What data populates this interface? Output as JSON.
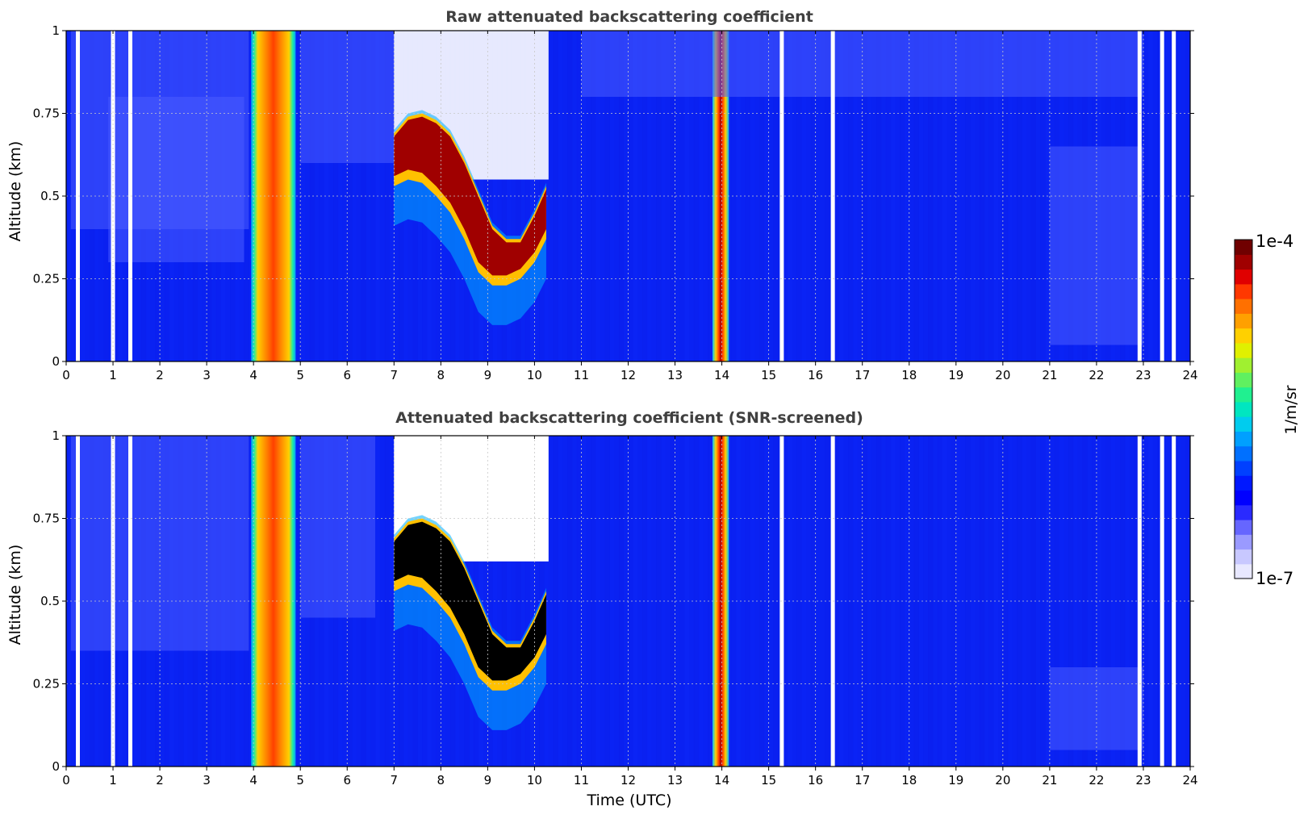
{
  "colorbar": {
    "max_label": "1e-4",
    "min_label": "1e-7",
    "unit_label": "1/m/sr",
    "colors": [
      "#e8e8ff",
      "#c8c8ff",
      "#9a9aff",
      "#6666ff",
      "#2a2aff",
      "#0000ff",
      "#0018ff",
      "#0040ff",
      "#0070ff",
      "#00a0ff",
      "#00ccee",
      "#00e6c0",
      "#20f090",
      "#60f060",
      "#a0f030",
      "#e0f000",
      "#ffd000",
      "#ffa000",
      "#ff7000",
      "#ff3800",
      "#e00000",
      "#a00000",
      "#700000"
    ]
  },
  "chart_data": [
    {
      "type": "heatmap",
      "title": "Raw attenuated backscattering coefficient",
      "xlabel": "",
      "ylabel": "Altitude (km)",
      "xlim": [
        0,
        24
      ],
      "ylim": [
        0,
        1
      ],
      "x_ticks": [
        "0",
        "1",
        "2",
        "3",
        "4",
        "5",
        "6",
        "7",
        "8",
        "9",
        "10",
        "11",
        "12",
        "13",
        "14",
        "15",
        "16",
        "17",
        "18",
        "19",
        "20",
        "21",
        "22",
        "23",
        "24"
      ],
      "y_ticks": [
        "0",
        "0.25",
        "0.5",
        "0.75",
        "1"
      ],
      "grid": true,
      "colorscale": "jet (log)",
      "value_range": [
        "1e-7",
        "1e-4"
      ],
      "background_color": "#0b24f5",
      "features": [
        {
          "kind": "precipitation",
          "x": [
            3.95,
            4.9
          ],
          "y": [
            0,
            1
          ],
          "level": "high"
        },
        {
          "kind": "precipitation",
          "x": [
            13.8,
            14.15
          ],
          "y": [
            0,
            1
          ],
          "level": "very high"
        },
        {
          "kind": "noise",
          "x": [
            7.0,
            10.3
          ],
          "y": [
            0.55,
            1
          ],
          "level": "missing"
        },
        {
          "kind": "noise",
          "x": [
            0.1,
            3.9
          ],
          "y": [
            0.4,
            1
          ],
          "level": "low"
        },
        {
          "kind": "noise",
          "x": [
            5.0,
            7.0
          ],
          "y": [
            0.6,
            1
          ],
          "level": "low"
        },
        {
          "kind": "noise",
          "x": [
            11.0,
            23.0
          ],
          "y": [
            0.8,
            1
          ],
          "level": "low"
        },
        {
          "kind": "aerosol",
          "x": [
            21.0,
            23.0
          ],
          "y": [
            0.05,
            0.65
          ],
          "level": "low"
        },
        {
          "kind": "aerosol",
          "x": [
            0.9,
            3.8
          ],
          "y": [
            0.3,
            0.8
          ],
          "level": "low"
        }
      ],
      "cloud_layer": {
        "x": [
          7.0,
          7.3,
          7.6,
          7.9,
          8.2,
          8.5,
          8.8,
          9.1,
          9.4,
          9.7,
          10.0,
          10.25
        ],
        "y_top": [
          0.68,
          0.73,
          0.74,
          0.72,
          0.68,
          0.6,
          0.5,
          0.4,
          0.36,
          0.36,
          0.44,
          0.52
        ],
        "y_bottom": [
          0.56,
          0.58,
          0.57,
          0.53,
          0.48,
          0.4,
          0.3,
          0.26,
          0.26,
          0.28,
          0.33,
          0.4
        ]
      },
      "missing_profiles": [
        0.25,
        1.0,
        1.37,
        15.28,
        16.37,
        22.92,
        23.4,
        23.65
      ]
    },
    {
      "type": "heatmap",
      "title": "Attenuated backscattering coefficient (SNR-screened)",
      "xlabel": "Time (UTC)",
      "ylabel": "Altitude (km)",
      "xlim": [
        0,
        24
      ],
      "ylim": [
        0,
        1
      ],
      "x_ticks": [
        "0",
        "1",
        "2",
        "3",
        "4",
        "5",
        "6",
        "7",
        "8",
        "9",
        "10",
        "11",
        "12",
        "13",
        "14",
        "15",
        "16",
        "17",
        "18",
        "19",
        "20",
        "21",
        "22",
        "23",
        "24"
      ],
      "y_ticks": [
        "0",
        "0.25",
        "0.5",
        "0.75",
        "1"
      ],
      "grid": true,
      "colorscale": "jet (log)",
      "value_range": [
        "1e-7",
        "1e-4"
      ],
      "background_color": "#0b24f5",
      "features": [
        {
          "kind": "precipitation",
          "x": [
            3.95,
            4.9
          ],
          "y": [
            0,
            1
          ],
          "level": "high"
        },
        {
          "kind": "precipitation",
          "x": [
            13.8,
            14.15
          ],
          "y": [
            0,
            1
          ],
          "level": "very high"
        },
        {
          "kind": "screened",
          "x": [
            7.0,
            10.3
          ],
          "y": [
            0.62,
            1
          ],
          "level": "missing"
        },
        {
          "kind": "aerosol",
          "x": [
            0.1,
            3.9
          ],
          "y": [
            0.35,
            1
          ],
          "level": "low"
        },
        {
          "kind": "aerosol",
          "x": [
            5.0,
            6.6
          ],
          "y": [
            0.45,
            1
          ],
          "level": "low"
        },
        {
          "kind": "aerosol",
          "x": [
            21.0,
            23.0
          ],
          "y": [
            0.05,
            0.3
          ],
          "level": "low"
        }
      ],
      "cloud_layer": {
        "x": [
          7.0,
          7.3,
          7.6,
          7.9,
          8.2,
          8.5,
          8.8,
          9.1,
          9.4,
          9.7,
          10.0,
          10.25
        ],
        "y_top": [
          0.68,
          0.73,
          0.74,
          0.72,
          0.68,
          0.6,
          0.5,
          0.4,
          0.36,
          0.36,
          0.44,
          0.52
        ],
        "y_bottom": [
          0.56,
          0.58,
          0.57,
          0.53,
          0.48,
          0.4,
          0.3,
          0.26,
          0.26,
          0.28,
          0.33,
          0.4
        ]
      },
      "missing_profiles": [
        0.25,
        1.0,
        1.37,
        15.28,
        16.37,
        22.92,
        23.4,
        23.65
      ]
    }
  ]
}
